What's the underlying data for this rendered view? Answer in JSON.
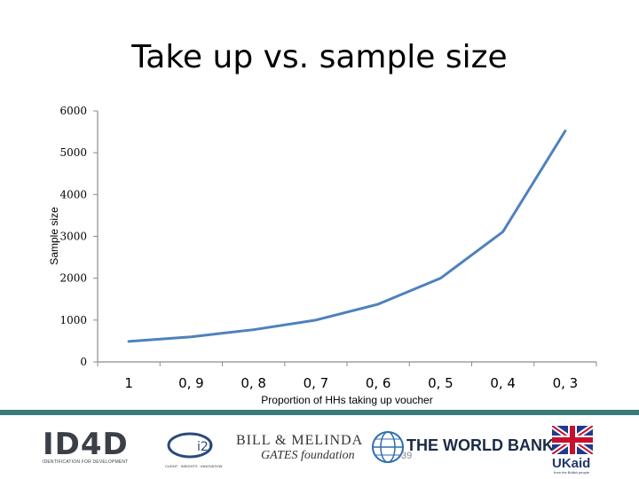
{
  "chart_data": {
    "type": "line",
    "title": "Take up vs. sample size",
    "xlabel": "Proportion of HHs taking up voucher",
    "ylabel": "Sample size",
    "categories": [
      "1",
      "0, 9",
      "0, 8",
      "0, 7",
      "0, 6",
      "0, 5",
      "0, 4",
      "0, 3"
    ],
    "series": [
      {
        "values": [
          490,
          600,
          770,
          1000,
          1380,
          2000,
          3110,
          5520
        ]
      }
    ],
    "ylim": [
      0,
      6000
    ],
    "yticks": [
      "0",
      "1000",
      "2000",
      "3000",
      "4000",
      "5000",
      "6000"
    ],
    "grid": false,
    "line_color": "#4f81bd"
  },
  "footer": {
    "page_number": "39",
    "logos": {
      "id4d": {
        "text": "ID4D",
        "subtitle": "IDENTIFICATION FOR DEVELOPMENT"
      },
      "i2i": {
        "text": "i2i",
        "subtitle": "CLIENT · INSIGHTS · INNOVATION"
      },
      "gates": {
        "line1": "BILL & MELINDA",
        "line2": "GATES foundation"
      },
      "worldbank": {
        "text": "THE WORLD BANK"
      },
      "ukaid": {
        "text": "UKaid",
        "subtitle": "from the British people"
      }
    },
    "accent_color": "#3a7a78"
  }
}
